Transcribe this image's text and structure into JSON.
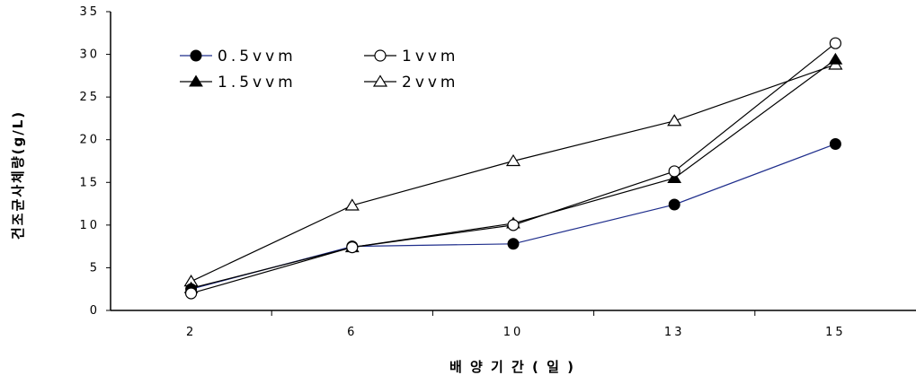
{
  "chart_data": {
    "type": "line",
    "title": "",
    "xlabel": "배 양 기 간 ( 일 )",
    "ylabel": "건조균사체량(g/L)",
    "categories": [
      "2",
      "6",
      "10",
      "13",
      "15"
    ],
    "ylim": [
      0,
      35
    ],
    "yticks": [
      "0",
      "5",
      "10",
      "15",
      "20",
      "25",
      "30",
      "35"
    ],
    "grid": false,
    "legend_position": "top-left",
    "series": [
      {
        "name": "0.5vvm",
        "marker": "filled-circle",
        "line_color": "#1f2e8c",
        "values": [
          2.5,
          7.5,
          7.8,
          12.4,
          19.5
        ]
      },
      {
        "name": "1vvm",
        "marker": "open-circle",
        "line_color": "#000000",
        "values": [
          2.0,
          7.4,
          10.0,
          16.3,
          31.3
        ]
      },
      {
        "name": "1.5vvm",
        "marker": "filled-triangle",
        "line_color": "#000000",
        "values": [
          2.6,
          7.4,
          10.2,
          15.5,
          29.4
        ]
      },
      {
        "name": "2vvm",
        "marker": "open-triangle",
        "line_color": "#000000",
        "values": [
          3.4,
          12.3,
          17.5,
          22.2,
          28.8
        ]
      }
    ]
  }
}
